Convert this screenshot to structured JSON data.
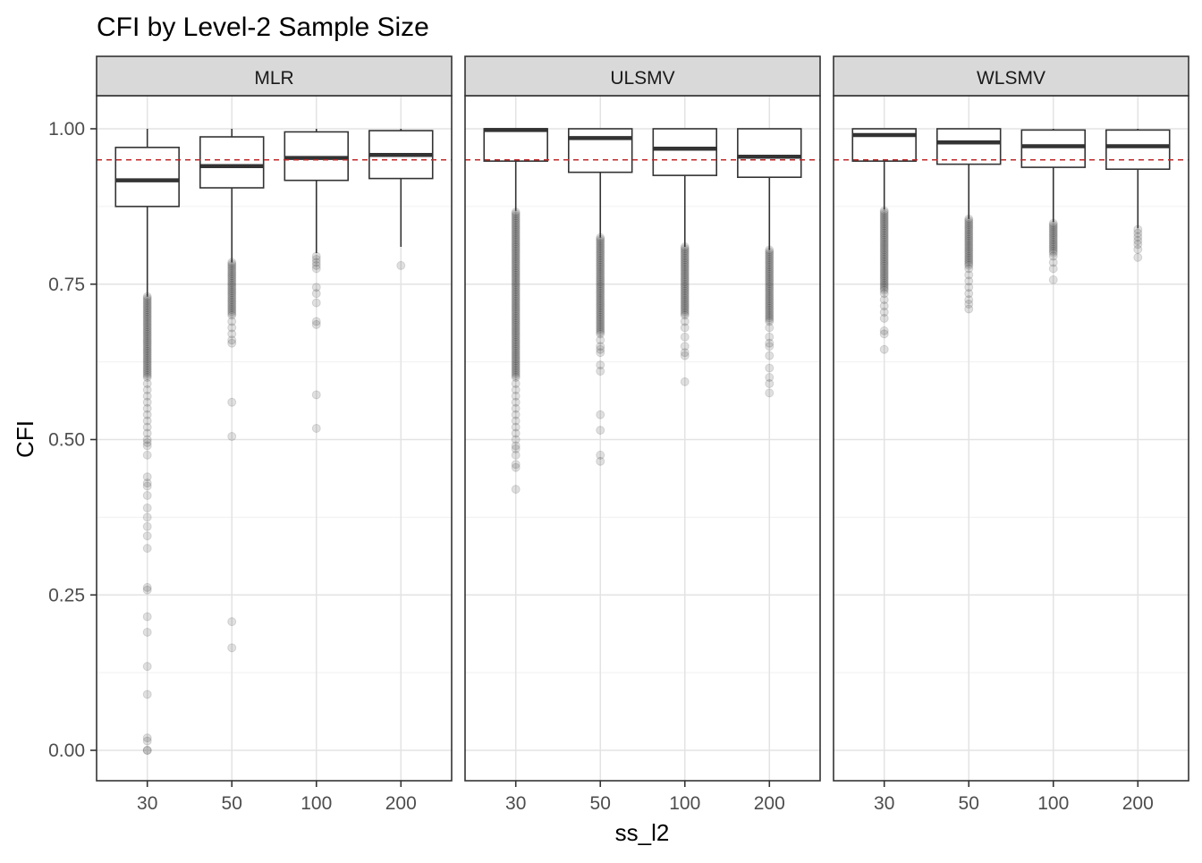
{
  "chart_data": {
    "type": "box",
    "title": "CFI by Level-2 Sample Size",
    "xlabel": "ss_l2",
    "ylabel": "CFI",
    "ylim": [
      -0.05,
      1.09
    ],
    "yticks": [
      0.0,
      0.25,
      0.5,
      0.75,
      1.0
    ],
    "ytick_labels": [
      "0.00",
      "0.25",
      "0.50",
      "0.75",
      "1.00"
    ],
    "categories": [
      "30",
      "50",
      "100",
      "200"
    ],
    "reference_line": {
      "y": 0.95,
      "color": "#c0282a",
      "style": "dashed"
    },
    "grid": true,
    "panels": [
      {
        "name": "MLR",
        "boxes": [
          {
            "category": "30",
            "lower_whisker": 0.73,
            "q1": 0.875,
            "median": 0.917,
            "q3": 0.97,
            "upper_whisker": 1.0,
            "outliers_dense": [
              0.6,
              0.73
            ],
            "outliers": [
              0.59,
              0.58,
              0.57,
              0.56,
              0.55,
              0.54,
              0.53,
              0.52,
              0.51,
              0.5,
              0.495,
              0.49,
              0.475,
              0.44,
              0.43,
              0.425,
              0.41,
              0.39,
              0.375,
              0.36,
              0.345,
              0.325,
              0.262,
              0.258,
              0.215,
              0.19,
              0.135,
              0.09,
              0.02,
              0.015,
              0.0,
              0.0
            ]
          },
          {
            "category": "50",
            "lower_whisker": 0.785,
            "q1": 0.905,
            "median": 0.94,
            "q3": 0.987,
            "upper_whisker": 1.0,
            "outliers_dense": [
              0.7,
              0.785
            ],
            "outliers": [
              0.69,
              0.68,
              0.67,
              0.66,
              0.655,
              0.56,
              0.505,
              0.207,
              0.165
            ]
          },
          {
            "category": "100",
            "lower_whisker": 0.8,
            "q1": 0.917,
            "median": 0.953,
            "q3": 0.995,
            "upper_whisker": 1.0,
            "outliers_dense": [],
            "outliers": [
              0.795,
              0.79,
              0.785,
              0.78,
              0.775,
              0.745,
              0.735,
              0.72,
              0.69,
              0.685,
              0.572,
              0.518
            ]
          },
          {
            "category": "200",
            "lower_whisker": 0.81,
            "q1": 0.92,
            "median": 0.958,
            "q3": 0.997,
            "upper_whisker": 1.0,
            "outliers_dense": [],
            "outliers": [
              0.78
            ]
          }
        ]
      },
      {
        "name": "ULSMV",
        "boxes": [
          {
            "category": "30",
            "lower_whisker": 0.868,
            "q1": 0.948,
            "median": 0.998,
            "q3": 1.0,
            "upper_whisker": 1.0,
            "outliers_dense": [
              0.6,
              0.866
            ],
            "outliers": [
              0.59,
              0.58,
              0.57,
              0.56,
              0.55,
              0.54,
              0.53,
              0.52,
              0.51,
              0.5,
              0.49,
              0.485,
              0.475,
              0.46,
              0.455,
              0.42
            ]
          },
          {
            "category": "50",
            "lower_whisker": 0.825,
            "q1": 0.93,
            "median": 0.985,
            "q3": 1.0,
            "upper_whisker": 1.0,
            "outliers_dense": [
              0.67,
              0.825
            ],
            "outliers": [
              0.66,
              0.65,
              0.645,
              0.64,
              0.62,
              0.61,
              0.54,
              0.515,
              0.475,
              0.465
            ]
          },
          {
            "category": "100",
            "lower_whisker": 0.81,
            "q1": 0.925,
            "median": 0.968,
            "q3": 1.0,
            "upper_whisker": 1.0,
            "outliers_dense": [
              0.7,
              0.81
            ],
            "outliers": [
              0.69,
              0.68,
              0.665,
              0.65,
              0.64,
              0.635,
              0.593
            ]
          },
          {
            "category": "200",
            "lower_whisker": 0.805,
            "q1": 0.922,
            "median": 0.955,
            "q3": 1.0,
            "upper_whisker": 1.0,
            "outliers_dense": [
              0.69,
              0.805
            ],
            "outliers": [
              0.68,
              0.665,
              0.655,
              0.65,
              0.635,
              0.615,
              0.6,
              0.59,
              0.575
            ]
          }
        ]
      },
      {
        "name": "WLSMV",
        "boxes": [
          {
            "category": "30",
            "lower_whisker": 0.87,
            "q1": 0.948,
            "median": 0.99,
            "q3": 1.0,
            "upper_whisker": 1.0,
            "outliers_dense": [
              0.74,
              0.868
            ],
            "outliers": [
              0.735,
              0.725,
              0.715,
              0.705,
              0.695,
              0.675,
              0.67,
              0.645
            ]
          },
          {
            "category": "50",
            "lower_whisker": 0.855,
            "q1": 0.943,
            "median": 0.978,
            "q3": 1.0,
            "upper_whisker": 1.0,
            "outliers_dense": [
              0.78,
              0.855
            ],
            "outliers": [
              0.775,
              0.765,
              0.755,
              0.745,
              0.735,
              0.725,
              0.718,
              0.71
            ]
          },
          {
            "category": "100",
            "lower_whisker": 0.85,
            "q1": 0.938,
            "median": 0.972,
            "q3": 0.998,
            "upper_whisker": 1.0,
            "outliers_dense": [
              0.8,
              0.848
            ],
            "outliers": [
              0.795,
              0.785,
              0.775,
              0.757
            ]
          },
          {
            "category": "200",
            "lower_whisker": 0.84,
            "q1": 0.935,
            "median": 0.972,
            "q3": 0.998,
            "upper_whisker": 1.0,
            "outliers_dense": [],
            "outliers": [
              0.838,
              0.832,
              0.826,
              0.82,
              0.814,
              0.806,
              0.793
            ]
          }
        ]
      }
    ]
  }
}
